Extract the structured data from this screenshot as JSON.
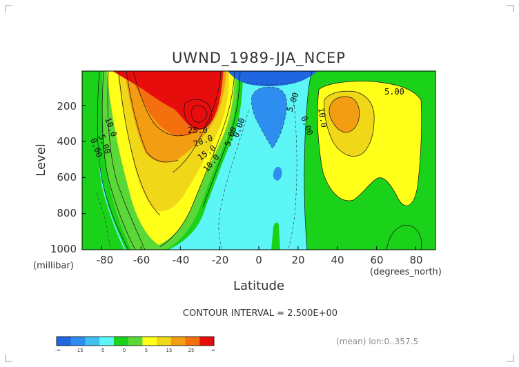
{
  "chart_data": {
    "type": "contour",
    "title": "UWND_1989-JJA_NCEP",
    "xlabel": "Latitude",
    "ylabel": "Level",
    "x_units": "(degrees_north)",
    "y_units": "(millibar)",
    "xlim": [
      -90,
      90
    ],
    "ylim": [
      1000,
      10
    ],
    "y_inverted": true,
    "x_ticks": [
      "-80",
      "-60",
      "-40",
      "-20",
      "0",
      "20",
      "40",
      "60",
      "80"
    ],
    "x_tick_values": [
      -80,
      -60,
      -40,
      -20,
      0,
      20,
      40,
      60,
      80
    ],
    "y_ticks": [
      "200",
      "400",
      "600",
      "800",
      "1000"
    ],
    "y_tick_values": [
      200,
      400,
      600,
      800,
      1000
    ],
    "contour_interval_text": "CONTOUR INTERVAL = 2.500E+00",
    "contour_interval": 2.5,
    "contour_labels": [
      "10.0",
      "5.00",
      "0.00",
      "25.0",
      "20.0",
      "15.0",
      "10.0",
      "5.00",
      "0.00",
      "5.00",
      "5.00",
      "10.0",
      "0.00"
    ],
    "jets": [
      {
        "lat": -30,
        "level": 200,
        "max": 35
      },
      {
        "lat": 42,
        "level": 200,
        "max": 22.5
      },
      {
        "lat": 0,
        "level": 50,
        "min": -15
      }
    ],
    "colorbar": {
      "ticks": [
        "-∞",
        "-15",
        "-5",
        "0",
        "5",
        "15",
        "25",
        "∞"
      ],
      "colors": [
        "#1f66e0",
        "#2e8ef0",
        "#40bff0",
        "#5cf6f6",
        "#1bd21b",
        "#5ad838",
        "#ffff1a",
        "#f0d718",
        "#f39e12",
        "#f46f0e",
        "#e80d0d"
      ]
    },
    "grid": false
  },
  "footer": {
    "mean_label": "(mean) lon:0..357.5"
  }
}
